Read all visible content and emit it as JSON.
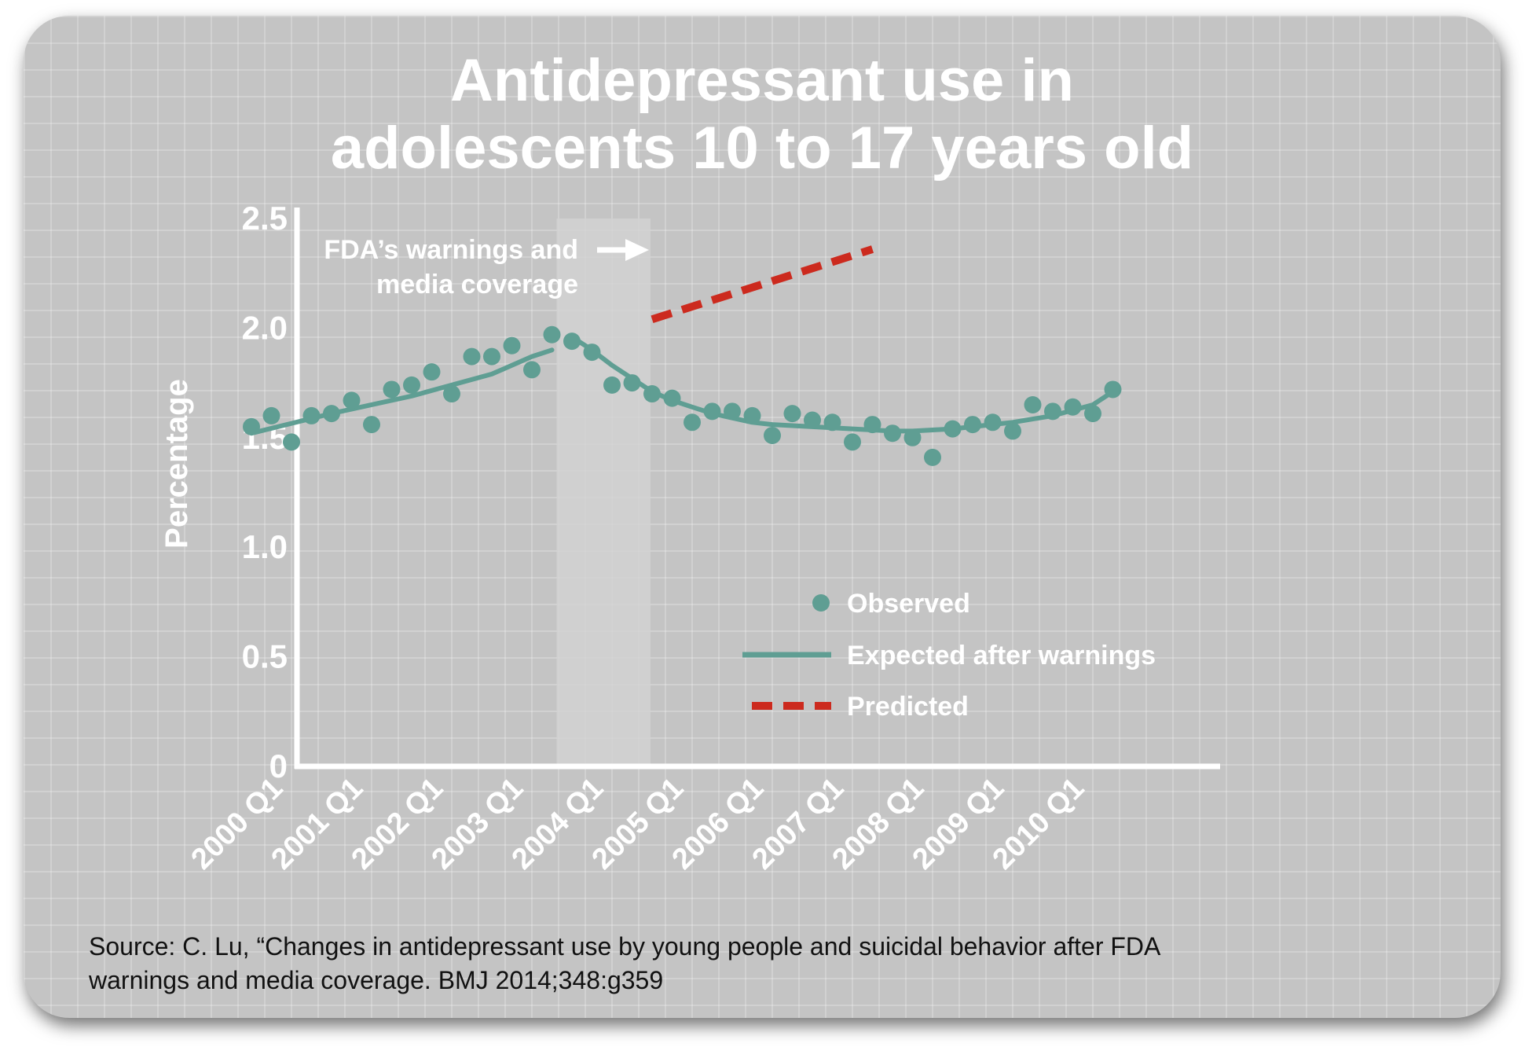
{
  "title_lines": [
    "Antidepressant use in",
    "adolescents 10 to 17 years old"
  ],
  "source_lines": [
    "Source: C. Lu, “Changes in antidepressant use by young people and suicidal behavior after FDA",
    "warnings and media coverage.  BMJ 2014;348:g359"
  ],
  "annotation": {
    "lines": [
      "FDA’s warnings and",
      "media coverage"
    ],
    "icon": "right-arrow-icon"
  },
  "colors": {
    "observed": "#5f9e93",
    "expected": "#5f9e93",
    "predicted": "#cc2a1e",
    "axis": "#ffffff",
    "text": "#ffffff",
    "card": "#c4c4c4"
  },
  "chart_data": {
    "type": "scatter",
    "title": "Antidepressant use in adolescents 10 to 17 years old",
    "xlabel": "",
    "ylabel": "Percentage",
    "ylim": [
      0,
      2.5
    ],
    "yticks": [
      "0",
      "0.5",
      "1.0",
      "1.5",
      "2.0",
      "2.5"
    ],
    "yticks_values": [
      0,
      0.5,
      1.0,
      1.5,
      2.0,
      2.5
    ],
    "x_tick_labels": [
      "2000 Q1",
      "2001 Q1",
      "2002 Q1",
      "2003 Q1",
      "2004 Q1",
      "2005 Q1",
      "2006 Q1",
      "2007 Q1",
      "2008 Q1",
      "2009 Q1",
      "2010 Q1"
    ],
    "x_domain": [
      "2000 Q1",
      "2011 Q2"
    ],
    "grid": false,
    "legend_position": "bottom-right",
    "shaded_period": [
      "2003 Q4",
      "2005 Q1"
    ],
    "series": [
      {
        "name": "Observed",
        "type": "scatter",
        "x": [
          "2000 Q1",
          "2000 Q2",
          "2000 Q3",
          "2000 Q4",
          "2001 Q1",
          "2001 Q2",
          "2001 Q3",
          "2001 Q4",
          "2002 Q1",
          "2002 Q2",
          "2002 Q3",
          "2002 Q4",
          "2003 Q1",
          "2003 Q2",
          "2003 Q3",
          "2003 Q4",
          "2004 Q1",
          "2004 Q2",
          "2004 Q3",
          "2004 Q4",
          "2005 Q1",
          "2005 Q2",
          "2005 Q3",
          "2005 Q4",
          "2006 Q1",
          "2006 Q2",
          "2006 Q3",
          "2006 Q4",
          "2007 Q1",
          "2007 Q2",
          "2007 Q3",
          "2007 Q4",
          "2008 Q1",
          "2008 Q2",
          "2008 Q3",
          "2008 Q4",
          "2009 Q1",
          "2009 Q2",
          "2009 Q3",
          "2009 Q4",
          "2010 Q1",
          "2010 Q2",
          "2010 Q3",
          "2010 Q4"
        ],
        "y": [
          1.55,
          1.6,
          1.48,
          1.6,
          1.61,
          1.67,
          1.56,
          1.72,
          1.74,
          1.8,
          1.7,
          1.87,
          1.87,
          1.92,
          1.81,
          1.97,
          1.94,
          1.89,
          1.74,
          1.75,
          1.7,
          1.68,
          1.57,
          1.62,
          1.62,
          1.6,
          1.51,
          1.61,
          1.58,
          1.57,
          1.48,
          1.56,
          1.52,
          1.5,
          1.41,
          1.54,
          1.56,
          1.57,
          1.53,
          1.65,
          1.62,
          1.64,
          1.61,
          1.72
        ]
      },
      {
        "name": "Expected after warnings",
        "type": "line",
        "x": [
          "2000 Q1",
          "2001 Q1",
          "2002 Q1",
          "2003 Q1",
          "2003 Q3",
          "2003 Q4",
          "2004 Q1",
          "2004 Q2",
          "2004 Q3",
          "2004 Q4",
          "2005 Q1",
          "2005 Q2",
          "2005 Q3",
          "2005 Q4",
          "2006 Q1",
          "2006 Q2",
          "2006 Q3",
          "2006 Q4",
          "2007 Q1",
          "2007 Q2",
          "2007 Q3",
          "2007 Q4",
          "2008 Q1",
          "2008 Q2",
          "2008 Q3",
          "2008 Q4",
          "2009 Q1",
          "2009 Q2",
          "2009 Q3",
          "2009 Q4",
          "2010 Q1",
          "2010 Q2",
          "2010 Q3",
          "2010 Q4"
        ],
        "y": [
          1.52,
          1.61,
          1.69,
          1.79,
          1.87,
          1.9,
          1.96,
          1.9,
          1.83,
          1.77,
          1.71,
          1.67,
          1.64,
          1.61,
          1.59,
          1.57,
          1.56,
          1.555,
          1.55,
          1.545,
          1.54,
          1.535,
          1.53,
          1.53,
          1.535,
          1.54,
          1.55,
          1.56,
          1.57,
          1.585,
          1.6,
          1.625,
          1.65,
          1.71
        ]
      },
      {
        "name": "Predicted",
        "type": "line",
        "dashed": true,
        "x": [
          "2005 Q1",
          "2007 Q4"
        ],
        "y": [
          2.04,
          2.36
        ]
      }
    ]
  }
}
